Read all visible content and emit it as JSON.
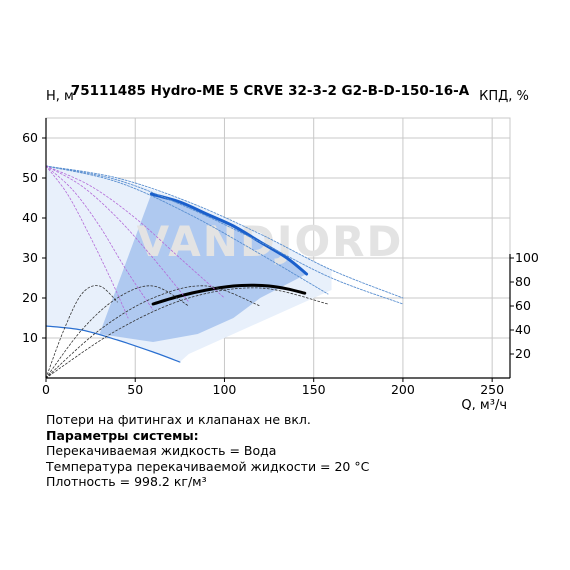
{
  "chart_data": {
    "type": "line",
    "title": "75111485 Hydro-ME 5 CRVE 32-3-2 G2-B-D-150-16-A",
    "xlabel": "Q, м³/ч",
    "ylabel": "H, м",
    "y2label": "КПД, %",
    "xlim": [
      0,
      260
    ],
    "ylim": [
      0,
      65
    ],
    "y2lim": [
      0,
      100
    ],
    "x_ticks": [
      0,
      50,
      100,
      150,
      200,
      250
    ],
    "y_ticks": [
      10,
      20,
      30,
      40,
      50,
      60
    ],
    "y2_ticks": [
      20,
      40,
      60,
      80,
      100
    ],
    "grid": true,
    "watermark": "VANDJORD",
    "series": [
      {
        "role": "pump-curve-bold",
        "color": "#1a5fcc",
        "x": [
          59,
          75,
          90,
          105,
          120,
          135,
          146
        ],
        "y": [
          46,
          44,
          41,
          38,
          34,
          30,
          26
        ]
      },
      {
        "role": "efficiency-bold",
        "color": "#000000",
        "x": [
          60,
          75,
          90,
          105,
          115,
          125,
          135,
          145
        ],
        "y": [
          18.5,
          20.5,
          22,
          23,
          23.2,
          23,
          22.3,
          21.2
        ]
      },
      {
        "role": "pump-curve-max",
        "color": "#5a8fd0",
        "x": [
          0,
          40,
          80,
          120,
          160,
          200
        ],
        "y": [
          53,
          50,
          44,
          36,
          27,
          20
        ]
      },
      {
        "role": "pump-curve-max-2",
        "color": "#5a8fd0",
        "x": [
          0,
          40,
          80,
          120,
          160,
          200
        ],
        "y": [
          53,
          49.5,
          42.5,
          34,
          25,
          18.5
        ]
      },
      {
        "role": "pump-curve-2",
        "color": "#5a8fd0",
        "x": [
          0,
          40,
          80,
          120,
          158
        ],
        "y": [
          53,
          49,
          41,
          31,
          21
        ]
      },
      {
        "role": "pump-curve-min",
        "color": "#2a6fd0",
        "x": [
          0,
          20,
          40,
          60,
          75
        ],
        "y": [
          13,
          12,
          9.5,
          6.5,
          4
        ]
      },
      {
        "role": "power-curve-1",
        "color": "#b36ad8",
        "x": [
          0,
          25,
          50,
          75,
          100
        ],
        "y": [
          53,
          48,
          40,
          30,
          20
        ]
      },
      {
        "role": "power-curve-2",
        "color": "#b36ad8",
        "x": [
          0,
          20,
          40,
          60,
          80
        ],
        "y": [
          53,
          48,
          40,
          30,
          19
        ]
      },
      {
        "role": "power-curve-3",
        "color": "#b36ad8",
        "x": [
          0,
          15,
          30,
          45,
          60
        ],
        "y": [
          53,
          47,
          38,
          27,
          17
        ]
      },
      {
        "role": "power-curve-4",
        "color": "#b36ad8",
        "x": [
          0,
          12,
          24,
          36,
          46
        ],
        "y": [
          53,
          46,
          36,
          25,
          15
        ]
      },
      {
        "role": "efficiency-min",
        "color": "#333333",
        "x": [
          0,
          10,
          20,
          30,
          40
        ],
        "y": [
          0,
          12,
          21,
          23,
          19
        ]
      },
      {
        "role": "efficiency-2",
        "color": "#333333",
        "x": [
          0,
          20,
          40,
          60,
          80
        ],
        "y": [
          0,
          12,
          20,
          23,
          18
        ]
      },
      {
        "role": "efficiency-3",
        "color": "#333333",
        "x": [
          0,
          30,
          60,
          90,
          120
        ],
        "y": [
          0,
          12,
          20,
          23,
          18
        ]
      },
      {
        "role": "efficiency-4",
        "color": "#333333",
        "x": [
          0,
          40,
          80,
          120,
          158
        ],
        "y": [
          0,
          12,
          20,
          22.5,
          18.5
        ]
      }
    ],
    "colors": {
      "axis": "#000000",
      "grid": "#c8c8c8",
      "region_dark": "#a8c4ee",
      "region_light": "#e8f0fb",
      "watermark": "#e3e3e3"
    }
  },
  "notes": {
    "line1": "Потери на фитингах и клапанах не вкл.",
    "line2": "Параметры системы:",
    "line3": "Перекачиваемая жидкость = Вода",
    "line4": "Температура перекачиваемой жидкости = 20 °C",
    "line5": "Плотность = 998.2 кг/м³"
  }
}
